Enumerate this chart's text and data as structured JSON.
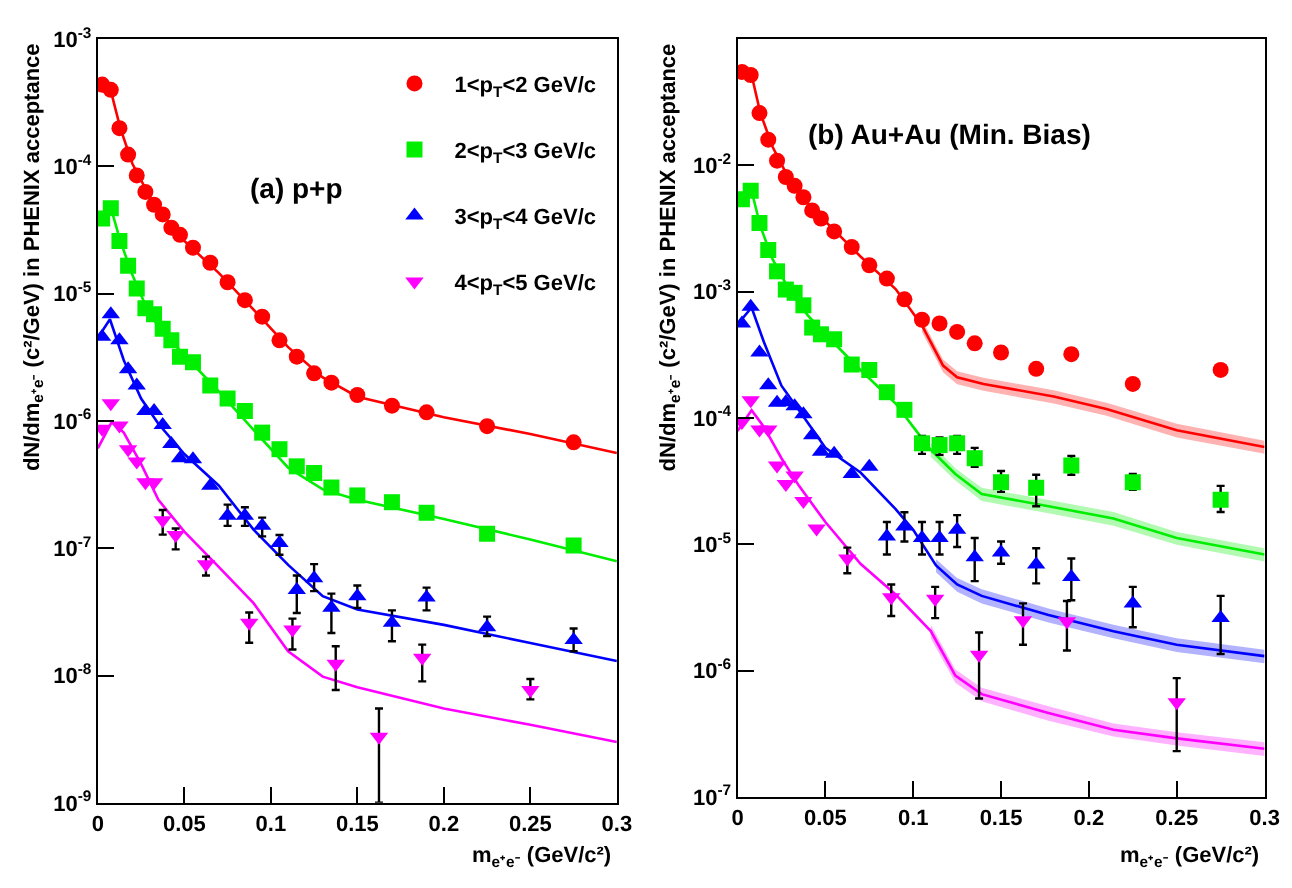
{
  "chart_data": [
    {
      "type": "scatter",
      "title": "(a) p+p",
      "xlabel": "m$_{e⁺e⁻}$ (GeV/c²)",
      "ylabel": "dN/dm$_{e⁺e⁻}$ (c²/GeV) in PHENIX acceptance",
      "log": "y",
      "legend": "top right",
      "xlim": [
        0,
        0.3
      ],
      "xticks": [
        0,
        0.05,
        0.1,
        0.15,
        0.2,
        0.25,
        0.3
      ],
      "ylim": [
        1e-09,
        0.001
      ],
      "yticks": [
        {
          "value": 1e-09,
          "label": "10$^{-9}$"
        },
        {
          "value": 1e-08,
          "label": "10$^{-8}$"
        },
        {
          "value": 1e-07,
          "label": "10$^{-7}$"
        },
        {
          "value": 1e-06,
          "label": "10$^{-6}$"
        },
        {
          "value": 1e-05,
          "label": "10$^{-5}$"
        },
        {
          "value": 0.0001,
          "label": "10$^{-4}$"
        },
        {
          "value": 0.001,
          "label": "10$^{-3}$"
        }
      ],
      "series": [
        {
          "type": "line",
          "color": "#ff0000",
          "line_style": "solid",
          "x": [
            0,
            0.008,
            0.013,
            0.02,
            0.03,
            0.04,
            0.05,
            0.07,
            0.09,
            0.11,
            0.13,
            0.15,
            0.2,
            0.25,
            0.3
          ],
          "values": [
            0.0004,
            0.00037,
            0.0002,
            0.000105,
            5.8e-05,
            3.8e-05,
            2.6e-05,
            1.45e-05,
            7.5e-06,
            3.8e-06,
            2.2e-06,
            1.55e-06,
            1.07e-06,
            7.9e-07,
            5.6e-07
          ]
        },
        {
          "type": "line",
          "color": "#00ee00",
          "line_style": "solid",
          "x": [
            0,
            0.008,
            0.013,
            0.02,
            0.03,
            0.04,
            0.05,
            0.07,
            0.09,
            0.11,
            0.13,
            0.15,
            0.2,
            0.25,
            0.3
          ],
          "values": [
            3.6e-05,
            4.5e-05,
            2.6e-05,
            1.4e-05,
            6.8e-06,
            4.6e-06,
            3.3e-06,
            1.7e-06,
            8.5e-07,
            4.3e-07,
            2.9e-07,
            2.4e-07,
            1.7e-07,
            1.17e-07,
            7.9e-08
          ]
        },
        {
          "type": "line",
          "color": "#0000ff",
          "line_style": "solid",
          "x": [
            0,
            0.007,
            0.015,
            0.025,
            0.035,
            0.05,
            0.07,
            0.09,
            0.11,
            0.13,
            0.15,
            0.2,
            0.25,
            0.3
          ],
          "values": [
            4.5e-06,
            6.3e-06,
            3e-06,
            1.5e-06,
            9.5e-07,
            5.5e-07,
            3.1e-07,
            1.4e-07,
            7.4e-08,
            4.2e-08,
            3.3e-08,
            2.5e-08,
            1.8e-08,
            1.3e-08
          ]
        },
        {
          "type": "line",
          "color": "#ff00ff",
          "line_style": "solid",
          "x": [
            0,
            0.008,
            0.015,
            0.025,
            0.035,
            0.05,
            0.07,
            0.09,
            0.11,
            0.13,
            0.15,
            0.2,
            0.25,
            0.3
          ],
          "values": [
            6.1e-07,
            9.8e-07,
            8.1e-07,
            4.6e-07,
            2.4e-07,
            1.35e-07,
            7.1e-08,
            3.7e-08,
            1.55e-08,
            9.8e-09,
            8.1e-09,
            5.5e-09,
            4.1e-09,
            3e-09
          ]
        },
        {
          "name": "1<p$_{T}$<2 GeV/c",
          "color": "#ff0000",
          "marker": "circle",
          "x": [
            0.0025,
            0.0075,
            0.0125,
            0.0175,
            0.0225,
            0.0275,
            0.0325,
            0.0375,
            0.0425,
            0.0475,
            0.055,
            0.065,
            0.075,
            0.085,
            0.095,
            0.105,
            0.115,
            0.125,
            0.135,
            0.15,
            0.17,
            0.19,
            0.225,
            0.275
          ],
          "values": [
            0.00044,
            0.0004,
            0.0002,
            0.000124,
            8.5e-05,
            6.3e-05,
            5e-05,
            4.2e-05,
            3.3e-05,
            2.9e-05,
            2.3e-05,
            1.75e-05,
            1.23e-05,
            8.9e-06,
            6.6e-06,
            4.3e-06,
            3.2e-06,
            2.37e-06,
            2e-06,
            1.6e-06,
            1.32e-06,
            1.17e-06,
            9.1e-07,
            6.8e-07
          ]
        },
        {
          "name": "2<p$_{T}$<3 GeV/c",
          "color": "#00ee00",
          "marker": "square",
          "x": [
            0.0025,
            0.0075,
            0.0125,
            0.0175,
            0.0225,
            0.0275,
            0.0325,
            0.0375,
            0.0425,
            0.0475,
            0.055,
            0.065,
            0.075,
            0.085,
            0.095,
            0.105,
            0.115,
            0.125,
            0.135,
            0.15,
            0.17,
            0.19,
            0.225,
            0.275
          ],
          "values": [
            3.9e-05,
            4.7e-05,
            2.6e-05,
            1.66e-05,
            1.1e-05,
            7.7e-06,
            6.9e-06,
            5.3e-06,
            4.3e-06,
            3.2e-06,
            2.9e-06,
            1.9e-06,
            1.5e-06,
            1.2e-06,
            8.1e-07,
            6e-07,
            4.4e-07,
            3.9e-07,
            3e-07,
            2.6e-07,
            2.3e-07,
            1.9e-07,
            1.3e-07,
            1.05e-07
          ]
        },
        {
          "name": "3<p$_{T}$<4 GeV/c",
          "color": "#0000ff",
          "marker": "triangle",
          "x": [
            0.0025,
            0.0075,
            0.0125,
            0.0175,
            0.0225,
            0.0275,
            0.0325,
            0.0375,
            0.0425,
            0.0475,
            0.055,
            0.065,
            0.075,
            0.085,
            0.095,
            0.105,
            0.115,
            0.125,
            0.135,
            0.15,
            0.17,
            0.19,
            0.225,
            0.275
          ],
          "values": [
            4.6e-06,
            6.9e-06,
            4.3e-06,
            2.55e-06,
            1.9e-06,
            1.2e-06,
            1.2e-06,
            9.3e-07,
            6.6e-07,
            5.1e-07,
            5e-07,
            3.1e-07,
            1.8e-07,
            1.8e-07,
            1.5e-07,
            1.1e-07,
            4.7e-08,
            5.8e-08,
            3.4e-08,
            4.2e-08,
            2.6e-08,
            4.1e-08,
            2.4e-08,
            1.9e-08
          ],
          "errors": [
            null,
            null,
            null,
            null,
            null,
            null,
            null,
            null,
            null,
            null,
            null,
            null,
            [
              1.5e-07,
              2.2e-07
            ],
            [
              1.5e-07,
              2.1e-07
            ],
            [
              1.24e-07,
              1.74e-07
            ],
            [
              8.9e-08,
              1.27e-07
            ],
            [
              3.1e-08,
              6.1e-08
            ],
            [
              4.6e-08,
              7.5e-08
            ],
            [
              2.16e-08,
              4.4e-08
            ],
            [
              3.4e-08,
              5.1e-08
            ],
            [
              1.86e-08,
              3.25e-08
            ],
            [
              3.25e-08,
              4.9e-08
            ],
            [
              2.04e-08,
              2.9e-08
            ],
            [
              1.55e-08,
              2.34e-08
            ]
          ]
        },
        {
          "name": "4<p$_{T}$<5 GeV/c",
          "color": "#ff00ff",
          "marker": "triangle-down",
          "x": [
            0.0025,
            0.0075,
            0.0125,
            0.0175,
            0.0225,
            0.0275,
            0.0325,
            0.0375,
            0.045,
            0.0625,
            0.0875,
            0.1125,
            0.1375,
            0.1625,
            0.1875,
            0.25
          ],
          "values": [
            8.7e-07,
            1.38e-06,
            9.2e-07,
            6e-07,
            4.8e-07,
            3.3e-07,
            3.3e-07,
            1.66e-07,
            1.27e-07,
            7.5e-08,
            2.6e-08,
            2.3e-08,
            1.24e-08,
            3.3e-09,
            1.38e-08,
            7.7e-09
          ],
          "errors": [
            null,
            null,
            null,
            null,
            null,
            null,
            null,
            [
              1.28e-07,
              2e-07
            ],
            [
              9.8e-08,
              1.43e-07
            ],
            [
              6.1e-08,
              8.6e-08
            ],
            [
              1.81e-08,
              3.13e-08
            ],
            [
              1.6e-08,
              2.8e-08
            ],
            [
              7.7e-09,
              1.7e-08
            ],
            [
              1e-09,
              5.5e-09
            ],
            [
              9e-09,
              1.75e-08
            ],
            [
              6.5e-09,
              9.4e-09
            ]
          ]
        }
      ]
    },
    {
      "type": "scatter",
      "title": "(b) Au+Au (Min. Bias)",
      "xlabel": "m$_{e⁺e⁻}$ (GeV/c²)",
      "ylabel": "dN/dm$_{e⁺e⁻}$ (c²/GeV) in PHENIX acceptance",
      "log": "y",
      "xlim": [
        0,
        0.3
      ],
      "xticks": [
        0,
        0.05,
        0.1,
        0.15,
        0.2,
        0.25,
        0.3
      ],
      "ylim": [
        1e-07,
        0.1
      ],
      "yticks": [
        {
          "value": 1e-07,
          "label": "10$^{-7}$"
        },
        {
          "value": 1e-06,
          "label": "10$^{-6}$"
        },
        {
          "value": 1e-05,
          "label": "10$^{-5}$"
        },
        {
          "value": 0.0001,
          "label": "10$^{-4}$"
        },
        {
          "value": 0.001,
          "label": "10$^{-3}$"
        },
        {
          "value": 0.01,
          "label": "10$^{-2}$"
        }
      ],
      "series": [
        {
          "type": "line",
          "color": "#ff0000",
          "line_style": "solid",
          "x": [
            0,
            0.008,
            0.013,
            0.02,
            0.03,
            0.04,
            0.05,
            0.07,
            0.09,
            0.105,
            0.117,
            0.125,
            0.14,
            0.18,
            0.21,
            0.25,
            0.3
          ],
          "values": [
            0.057,
            0.052,
            0.026,
            0.014,
            0.0075,
            0.005,
            0.0036,
            0.0019,
            0.00105,
            0.00054,
            0.00026,
            0.00021,
            0.000186,
            0.000148,
            0.000118,
            8e-05,
            5.9e-05
          ],
          "lower": [
            null,
            null,
            null,
            null,
            null,
            null,
            null,
            null,
            null,
            0.00048,
            0.00023,
            0.000185,
            0.000164,
            0.00013,
            0.000104,
            7e-05,
            5.2e-05
          ],
          "upper": [
            null,
            null,
            null,
            null,
            null,
            null,
            null,
            null,
            null,
            0.0006,
            0.00029,
            0.000235,
            0.000208,
            0.000166,
            0.000132,
            9e-05,
            6.6e-05
          ]
        },
        {
          "type": "line",
          "color": "#00ee00",
          "line_style": "solid",
          "x": [
            0,
            0.008,
            0.013,
            0.02,
            0.03,
            0.04,
            0.05,
            0.07,
            0.09,
            0.1,
            0.11,
            0.124,
            0.139,
            0.177,
            0.214,
            0.25,
            0.3
          ],
          "values": [
            0.0052,
            0.0063,
            0.0033,
            0.0018,
            0.001,
            0.00065,
            0.00046,
            0.00024,
            0.00013,
            8.5e-05,
            5.6e-05,
            3.6e-05,
            2.5e-05,
            2e-05,
            1.6e-05,
            1.12e-05,
            8.3e-06
          ],
          "lower": [
            null,
            null,
            null,
            null,
            null,
            null,
            null,
            null,
            null,
            null,
            4.9e-05,
            3.2e-05,
            2.2e-05,
            1.76e-05,
            1.4e-05,
            9.9e-06,
            7.3e-06
          ],
          "upper": [
            null,
            null,
            null,
            null,
            null,
            null,
            null,
            null,
            null,
            null,
            6.3e-05,
            4e-05,
            2.8e-05,
            2.24e-05,
            1.8e-05,
            1.25e-05,
            9.3e-06
          ]
        },
        {
          "type": "line",
          "color": "#0000ff",
          "line_style": "solid",
          "x": [
            0,
            0.008,
            0.015,
            0.025,
            0.035,
            0.05,
            0.07,
            0.09,
            0.1,
            0.113,
            0.125,
            0.139,
            0.177,
            0.214,
            0.25,
            0.3
          ],
          "values": [
            0.00055,
            0.00075,
            0.0004,
            0.00018,
            0.000115,
            5.8e-05,
            3.7e-05,
            1.9e-05,
            1.3e-05,
            6.8e-06,
            4.8e-06,
            3.9e-06,
            2.75e-06,
            2.05e-06,
            1.6e-06,
            1.3e-06
          ],
          "lower": [
            null,
            null,
            null,
            null,
            null,
            null,
            null,
            null,
            null,
            6e-06,
            4.2e-06,
            3.4e-06,
            2.4e-06,
            1.8e-06,
            1.4e-06,
            1.14e-06
          ],
          "upper": [
            null,
            null,
            null,
            null,
            null,
            null,
            null,
            null,
            null,
            7.6e-06,
            5.4e-06,
            4.4e-06,
            3.1e-06,
            2.3e-06,
            1.8e-06,
            1.46e-06
          ]
        },
        {
          "type": "line",
          "color": "#ff00ff",
          "line_style": "solid",
          "x": [
            0,
            0.008,
            0.015,
            0.025,
            0.035,
            0.05,
            0.07,
            0.09,
            0.11,
            0.124,
            0.139,
            0.177,
            0.214,
            0.25,
            0.3
          ],
          "values": [
            7.9e-05,
            0.000115,
            8.5e-05,
            4.8e-05,
            2.9e-05,
            1.5e-05,
            7e-06,
            4e-06,
            2.05e-06,
            9.1e-07,
            6.5e-07,
            4.6e-07,
            3.4e-07,
            2.9e-07,
            2.4e-07
          ],
          "lower": [
            null,
            null,
            null,
            null,
            null,
            null,
            null,
            null,
            1.8e-06,
            8e-07,
            5.7e-07,
            4e-07,
            3e-07,
            2.55e-07,
            2.1e-07
          ],
          "upper": [
            null,
            null,
            null,
            null,
            null,
            null,
            null,
            null,
            2.3e-06,
            1.02e-06,
            7.3e-07,
            5.2e-07,
            3.8e-07,
            3.25e-07,
            2.7e-07
          ]
        },
        {
          "color": "#ff0000",
          "marker": "circle",
          "x": [
            0.0025,
            0.0075,
            0.0125,
            0.0175,
            0.0225,
            0.0275,
            0.0325,
            0.0375,
            0.0425,
            0.0475,
            0.055,
            0.065,
            0.075,
            0.085,
            0.095,
            0.105,
            0.115,
            0.125,
            0.135,
            0.15,
            0.17,
            0.19,
            0.225,
            0.275
          ],
          "values": [
            0.055,
            0.052,
            0.026,
            0.016,
            0.0109,
            0.0081,
            0.0069,
            0.0056,
            0.0044,
            0.0038,
            0.003,
            0.00226,
            0.00162,
            0.00127,
            0.00087,
            0.0006,
            0.00056,
            0.00048,
            0.00039,
            0.00033,
            0.000245,
            0.00032,
            0.000186,
            0.00024
          ]
        },
        {
          "color": "#00ee00",
          "marker": "square",
          "x": [
            0.0025,
            0.0075,
            0.0125,
            0.0175,
            0.0225,
            0.0275,
            0.0325,
            0.0375,
            0.0425,
            0.0475,
            0.055,
            0.065,
            0.075,
            0.085,
            0.095,
            0.105,
            0.115,
            0.125,
            0.135,
            0.15,
            0.17,
            0.19,
            0.225,
            0.275
          ],
          "values": [
            0.0054,
            0.0063,
            0.0035,
            0.00214,
            0.00145,
            0.00104,
            0.00098,
            0.00078,
            0.00052,
            0.00046,
            0.00042,
            0.000265,
            0.00024,
            0.00016,
            0.000116,
            6.3e-05,
            6.1e-05,
            6.3e-05,
            4.8e-05,
            3.1e-05,
            2.8e-05,
            4.2e-05,
            3.1e-05,
            2.25e-05
          ],
          "errors": [
            null,
            null,
            null,
            null,
            null,
            null,
            null,
            null,
            null,
            null,
            null,
            null,
            null,
            null,
            null,
            [
              5.2e-05,
              7.2e-05
            ],
            [
              5.1e-05,
              7e-05
            ],
            [
              5.2e-05,
              7.2e-05
            ],
            [
              4.1e-05,
              5.8e-05
            ],
            [
              2.6e-05,
              3.8e-05
            ],
            [
              2e-05,
              3.55e-05
            ],
            [
              3.55e-05,
              5e-05
            ],
            [
              2.7e-05,
              3.6e-05
            ],
            [
              1.8e-05,
              2.9e-05
            ]
          ]
        },
        {
          "color": "#0000ff",
          "marker": "triangle",
          "x": [
            0.0025,
            0.0075,
            0.0125,
            0.0175,
            0.0225,
            0.0275,
            0.0325,
            0.0375,
            0.0425,
            0.0475,
            0.055,
            0.065,
            0.075,
            0.085,
            0.095,
            0.105,
            0.115,
            0.125,
            0.135,
            0.15,
            0.17,
            0.19,
            0.225,
            0.275
          ],
          "values": [
            0.00056,
            0.00076,
            0.00033,
            0.000182,
            0.000132,
            0.000133,
            0.000124,
            0.000107,
            7.3e-05,
            5.4e-05,
            5.2e-05,
            3.6e-05,
            4.1e-05,
            1.15e-05,
            1.38e-05,
            1.12e-05,
            1.12e-05,
            1.3e-05,
            7.9e-06,
            8.6e-06,
            6.9e-06,
            5.5e-06,
            3.4e-06,
            2.6e-06
          ],
          "errors": [
            null,
            null,
            null,
            null,
            null,
            null,
            null,
            null,
            null,
            null,
            null,
            null,
            null,
            [
              8.3e-06,
              1.5e-05
            ],
            [
              1.05e-05,
              1.79e-05
            ],
            [
              8.3e-06,
              1.5e-05
            ],
            [
              8.3e-06,
              1.5e-05
            ],
            [
              9.5e-06,
              1.7e-05
            ],
            [
              5.1e-06,
              1.12e-05
            ],
            [
              7e-06,
              1.05e-05
            ],
            [
              4.9e-06,
              9.3e-06
            ],
            [
              3.6e-06,
              7.7e-06
            ],
            [
              2.2e-06,
              4.6e-06
            ],
            [
              1.35e-06,
              3.9e-06
            ]
          ]
        },
        {
          "color": "#ff00ff",
          "marker": "triangle-down",
          "x": [
            0.0025,
            0.0075,
            0.0125,
            0.0175,
            0.0225,
            0.0275,
            0.0325,
            0.0375,
            0.045,
            0.0625,
            0.0875,
            0.1125,
            0.1375,
            0.1625,
            0.1875,
            0.25
          ],
          "values": [
            9.3e-05,
            0.000138,
            8.1e-05,
            8.1e-05,
            4.2e-05,
            3e-05,
            3.5e-05,
            2.2e-05,
            1.33e-05,
            7.7e-06,
            3.8e-06,
            3.7e-06,
            1.33e-06,
            2.5e-06,
            2.45e-06,
            5.6e-07
          ],
          "errors": [
            null,
            null,
            null,
            null,
            null,
            null,
            null,
            null,
            null,
            [
              5.9e-06,
              9.4e-06
            ],
            [
              2.7e-06,
              4.8e-06
            ],
            [
              2.6e-06,
              4.6e-06
            ],
            [
              6e-07,
              2e-06
            ],
            [
              1.6e-06,
              3.4e-06
            ],
            [
              1.44e-06,
              3.55e-06
            ],
            [
              2.3e-07,
              8.7e-07
            ]
          ]
        }
      ]
    }
  ]
}
